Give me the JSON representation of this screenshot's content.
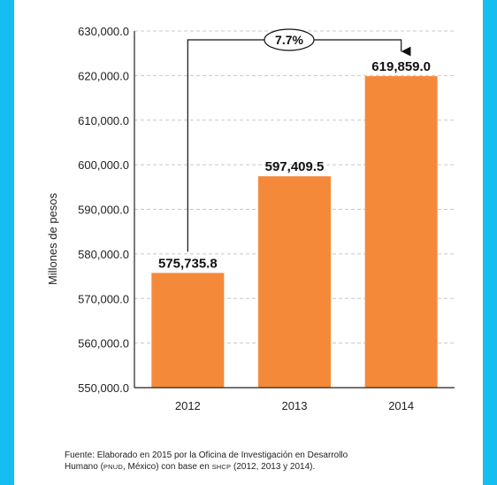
{
  "colors": {
    "frame": "#15bdf0",
    "bar": "#f5893a",
    "grid": "#c8c8c8"
  },
  "chart_data": {
    "type": "bar",
    "categories": [
      "2012",
      "2013",
      "2014"
    ],
    "values": [
      575735.8,
      597409.5,
      619859.0
    ],
    "data_labels": [
      "575,735.8",
      "597,409.5",
      "619,859.0"
    ],
    "ylabel": "Millones de pesos",
    "ylim": [
      550000,
      630000
    ],
    "yticks": [
      550000,
      560000,
      570000,
      580000,
      590000,
      600000,
      610000,
      620000,
      630000
    ],
    "ytick_labels": [
      "550,000.0",
      "560,000.0",
      "570,000.0",
      "580,000.0",
      "590,000.0",
      "600,000.0",
      "610,000.0",
      "620,000.0",
      "630,000.0"
    ],
    "grid": "horizontal dashed",
    "annotation": {
      "text": "7.7%",
      "from": "2012",
      "to": "2014"
    }
  },
  "source": {
    "line1": "Fuente: Elaborado en 2015 por la Oficina de Investigación en Desarrollo",
    "line2_a": "Humano (",
    "line2_pnud": "PNUD",
    "line2_b": ", México) con base en ",
    "line2_shcp": "SHCP",
    "line2_c": " (2012, 2013 y 2014)."
  }
}
